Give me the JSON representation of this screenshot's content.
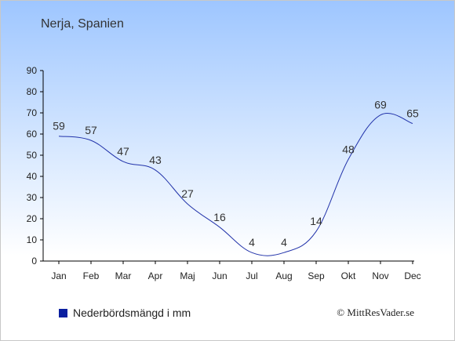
{
  "title": "Nerja, Spanien",
  "legend_label": "Nederbördsmängd i mm",
  "copyright": "© MittResVader.se",
  "colors": {
    "line": "#2233aa",
    "legend_swatch": "#0a1fa0",
    "axis": "#000000"
  },
  "chart_data": {
    "type": "line",
    "categories": [
      "Jan",
      "Feb",
      "Mar",
      "Apr",
      "Maj",
      "Jun",
      "Jul",
      "Aug",
      "Sep",
      "Okt",
      "Nov",
      "Dec"
    ],
    "series": [
      {
        "name": "Nederbördsmängd i mm",
        "values": [
          59,
          57,
          47,
          43,
          27,
          16,
          4,
          4,
          14,
          48,
          69,
          65
        ]
      }
    ],
    "ylim": [
      0,
      90
    ],
    "yticks": [
      0,
      10,
      20,
      30,
      40,
      50,
      60,
      70,
      80,
      90
    ],
    "grid": false
  }
}
